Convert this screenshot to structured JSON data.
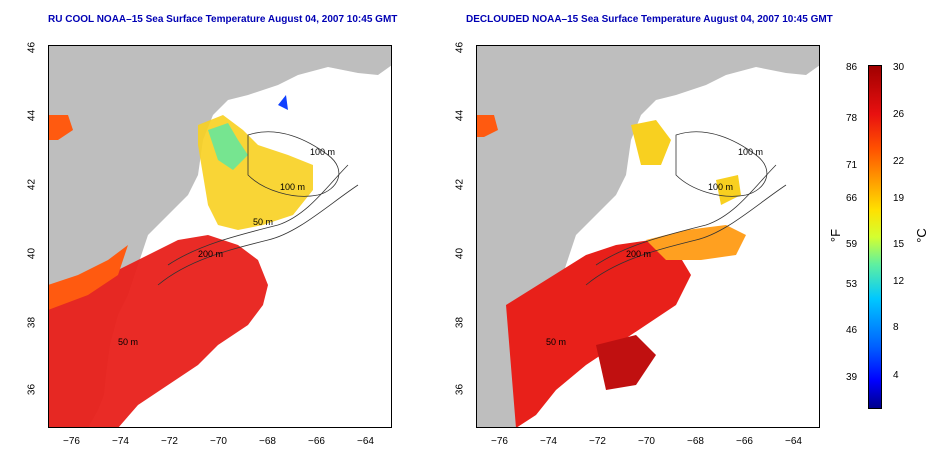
{
  "panels": [
    {
      "title": "RU COOL NOAA–15 Sea Surface Temperature August 04, 2007 10:45 GMT",
      "x_ticks": [
        "−76",
        "−74",
        "−72",
        "−70",
        "−68",
        "−66",
        "−64"
      ],
      "y_ticks": [
        "36",
        "38",
        "40",
        "42",
        "44",
        "46"
      ],
      "contour_labels": [
        "100 m",
        "100 m",
        "50 m",
        "200 m",
        "50 m"
      ]
    },
    {
      "title": "DECLOUDED NOAA–15 Sea Surface Temperature August 04, 2007 10:45 GMT",
      "x_ticks": [
        "−76",
        "−74",
        "−72",
        "−70",
        "−68",
        "−66",
        "−64"
      ],
      "y_ticks": [
        "36",
        "38",
        "40",
        "42",
        "44",
        "46"
      ],
      "contour_labels": [
        "100 m",
        "100 m",
        "200 m",
        "50 m"
      ]
    }
  ],
  "colorbar": {
    "fahrenheit_ticks": [
      "86",
      "78",
      "71",
      "66",
      "59",
      "53",
      "46",
      "39"
    ],
    "celsius_ticks": [
      "30",
      "26",
      "22",
      "19",
      "15",
      "12",
      "8",
      "4"
    ],
    "f_unit": "°F",
    "c_unit": "°C"
  },
  "colors": {
    "land": "#bebebe",
    "water_cloud": "#ffffff",
    "warm": "#e8201a",
    "title": "#0000b4"
  }
}
